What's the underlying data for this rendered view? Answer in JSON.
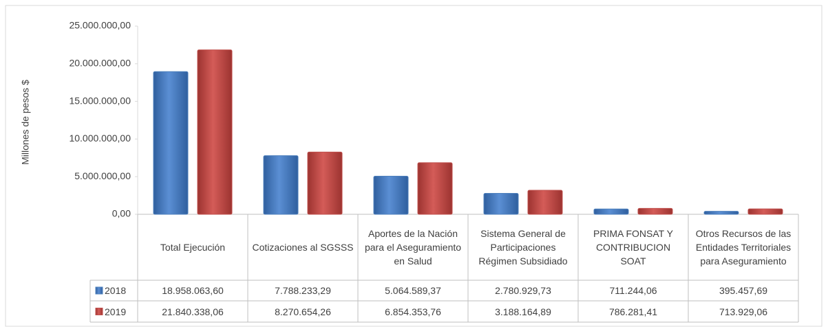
{
  "chart_data": {
    "type": "bar",
    "y_label": "Millones  de pesos $",
    "categories": [
      "Total Ejecución",
      "Cotizaciones al SGSSS",
      "Aportes de la Nación para el Aseguramiento en Salud",
      "Sistema General de Participaciones Régimen Subsidiado",
      "PRIMA FONSAT Y CONTRIBUCION SOAT",
      "Otros Recursos de las Entidades Territoriales para Aseguramiento"
    ],
    "series": [
      {
        "name": "2018",
        "color": "#4f81bd",
        "values": [
          18958063.6,
          7788233.29,
          5064589.37,
          2780929.73,
          711244.06,
          395457.69
        ],
        "value_labels": [
          "18.958.063,60",
          "7.788.233,29",
          "5.064.589,37",
          "2.780.929,73",
          "711.244,06",
          "395.457,69"
        ]
      },
      {
        "name": "2019",
        "color": "#c0504d",
        "values": [
          21840338.06,
          8270654.26,
          6854353.76,
          3188164.89,
          786281.41,
          713929.06
        ],
        "value_labels": [
          "21.840.338,06",
          "8.270.654,26",
          "6.854.353,76",
          "3.188.164,89",
          "786.281,41",
          "713.929,06"
        ]
      }
    ],
    "ylim": [
      0,
      25000000
    ],
    "yticks": [
      {
        "value": 0,
        "label": "0,00"
      },
      {
        "value": 5000000,
        "label": "5.000.000,00"
      },
      {
        "value": 10000000,
        "label": "10.000.000,00"
      },
      {
        "value": 15000000,
        "label": "15.000.000,00"
      },
      {
        "value": 20000000,
        "label": "20.000.000,00"
      },
      {
        "value": 25000000,
        "label": "25.000.000,00"
      }
    ]
  }
}
